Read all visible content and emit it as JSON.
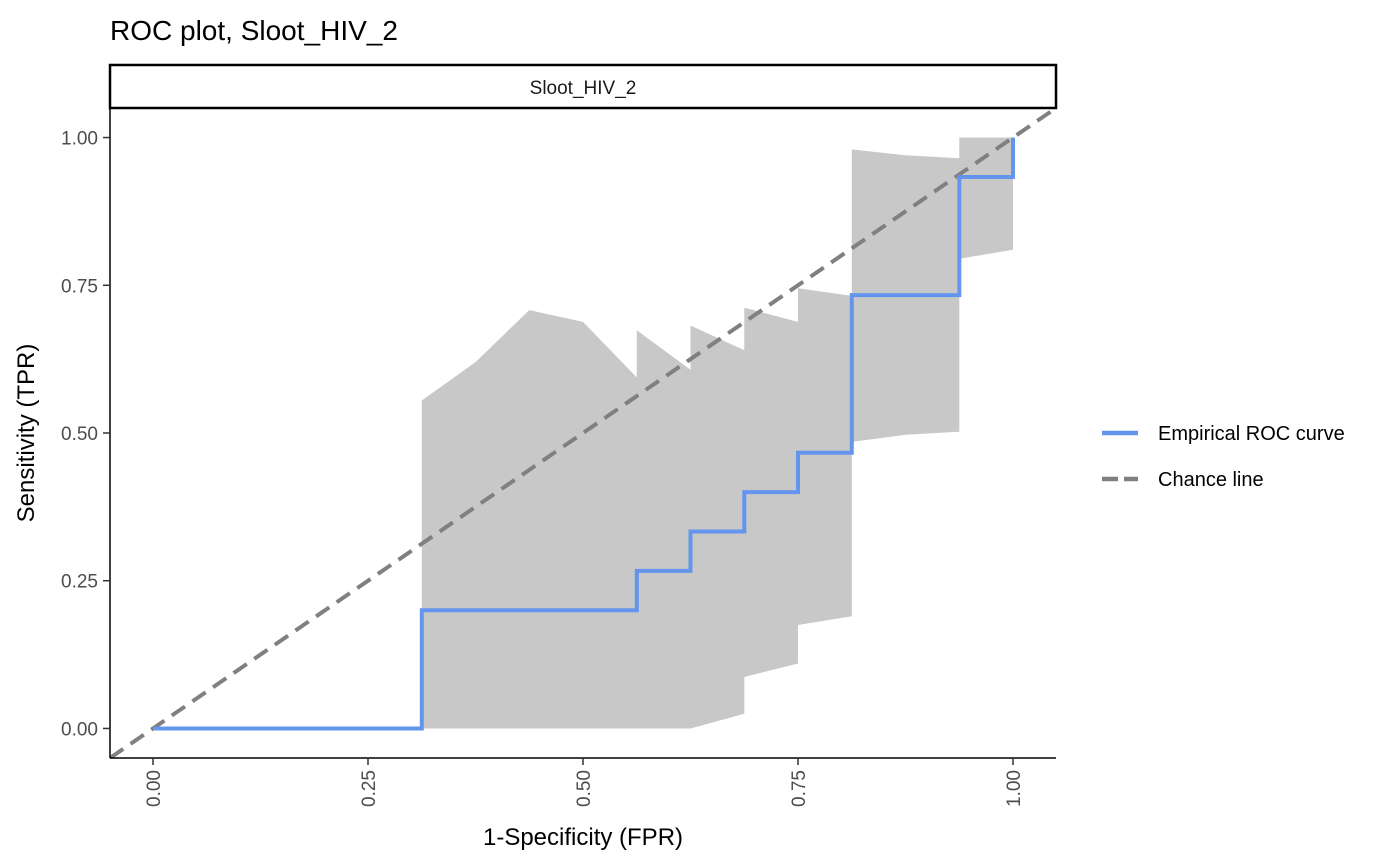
{
  "chart_data": {
    "type": "line",
    "title": "ROC plot, Sloot_HIV_2",
    "facet_label": "Sloot_HIV_2",
    "xlabel": "1-Specificity (FPR)",
    "ylabel": "Sensitivity (TPR)",
    "xlim": [
      -0.05,
      1.05
    ],
    "ylim": [
      -0.05,
      1.05
    ],
    "x_ticks": [
      0,
      0.25,
      0.5,
      0.75,
      1
    ],
    "x_tick_labels": [
      "0.00",
      "0.25",
      "0.50",
      "0.75",
      "1.00"
    ],
    "y_ticks": [
      0,
      0.25,
      0.5,
      0.75,
      1
    ],
    "y_tick_labels": [
      "0.00",
      "0.25",
      "0.50",
      "0.75",
      "1.00"
    ],
    "grid": false,
    "legend_position": "right",
    "series": [
      {
        "name": "Empirical ROC curve",
        "color": "#6495ED",
        "style": "solid",
        "points": [
          [
            0,
            0
          ],
          [
            0.3125,
            0
          ],
          [
            0.3125,
            0.2
          ],
          [
            0.5625,
            0.2
          ],
          [
            0.5625,
            0.2667
          ],
          [
            0.625,
            0.2667
          ],
          [
            0.625,
            0.3333
          ],
          [
            0.6875,
            0.3333
          ],
          [
            0.6875,
            0.4
          ],
          [
            0.75,
            0.4
          ],
          [
            0.75,
            0.4667
          ],
          [
            0.8125,
            0.4667
          ],
          [
            0.8125,
            0.7333
          ],
          [
            0.9375,
            0.7333
          ],
          [
            0.9375,
            0.9333
          ],
          [
            1,
            0.9333
          ],
          [
            1,
            1
          ]
        ]
      },
      {
        "name": "Chance line",
        "color": "#808080",
        "style": "dashed",
        "points": [
          [
            -0.05,
            -0.05
          ],
          [
            1.05,
            1.05
          ]
        ]
      }
    ],
    "confidence_band": {
      "color": "#C8C8C8",
      "upper": [
        [
          0.3125,
          0.555
        ],
        [
          0.375,
          0.62
        ],
        [
          0.4375,
          0.708
        ],
        [
          0.5,
          0.688
        ],
        [
          0.5625,
          0.594
        ],
        [
          0.5625,
          0.674
        ],
        [
          0.625,
          0.607
        ],
        [
          0.625,
          0.682
        ],
        [
          0.6875,
          0.64
        ],
        [
          0.6875,
          0.712
        ],
        [
          0.75,
          0.688
        ],
        [
          0.75,
          0.745
        ],
        [
          0.8125,
          0.732
        ],
        [
          0.8125,
          0.98
        ],
        [
          0.875,
          0.97
        ],
        [
          0.9375,
          0.965
        ],
        [
          0.9375,
          1.0
        ],
        [
          1,
          1.0
        ]
      ],
      "lower": [
        [
          1,
          0.81
        ],
        [
          0.9375,
          0.795
        ],
        [
          0.9375,
          0.502
        ],
        [
          0.875,
          0.497
        ],
        [
          0.8125,
          0.485
        ],
        [
          0.8125,
          0.19
        ],
        [
          0.75,
          0.175
        ],
        [
          0.75,
          0.11
        ],
        [
          0.6875,
          0.087
        ],
        [
          0.6875,
          0.025
        ],
        [
          0.625,
          0.0
        ],
        [
          0.5625,
          0.0
        ],
        [
          0.3125,
          0.0
        ]
      ]
    }
  }
}
